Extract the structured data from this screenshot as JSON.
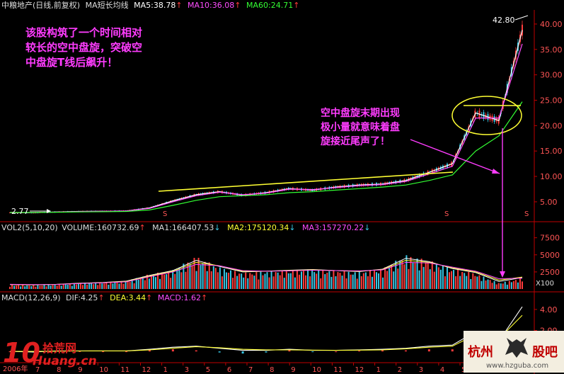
{
  "header_main": {
    "stock_name": "中粮地产(日线,前复权)",
    "ma_label": "MA短长均线",
    "ma5": "MA5:38.78",
    "ma10": "MA10:36.08",
    "ma60": "MA60:24.71"
  },
  "header_vol": {
    "title": "VOL2(5,10,20)",
    "volume": "VOLUME:160732.69",
    "ma1": "MA1:166407.53",
    "ma2": "MA2:175120.34",
    "ma3": "MA3:157270.22"
  },
  "header_macd": {
    "title": "MACD(12,26,9)",
    "dif": "DIF:4.25",
    "dea": "DEA:3.44",
    "macd": "MACD:1.62"
  },
  "annotations": {
    "top_left": [
      "该股构筑了一个时间相对",
      "较长的空中盘旋，突破空",
      "中盘旋T线后飙升！"
    ],
    "middle": [
      "空中盘旋末期出现",
      "极小量就意味着盘",
      "旋接近尾声了！"
    ],
    "price_high": "42.80",
    "price_low": "2.77"
  },
  "x_axis": {
    "year_label": "2006年",
    "month_ticks": [
      "7",
      "8",
      "9",
      "10",
      "11",
      "12",
      "1",
      "3",
      "5",
      "6",
      "7",
      "8",
      "9",
      "10",
      "11",
      "12",
      "1",
      "2",
      "3",
      "4",
      "5"
    ]
  },
  "watermark_left": {
    "big": "10",
    "cn": "拾荒网",
    "en": "Huang.cn"
  },
  "watermark_right": {
    "cn1": "杭州",
    "cn2": "股吧",
    "url": "www.hzguba.com"
  },
  "volume_unit": "X100",
  "colors": {
    "up": "#ff3b3b",
    "down": "#37c7e6",
    "ma5": "#ffffff",
    "ma10": "#ff4dff",
    "ma60": "#33ff33",
    "annotation": "#ff3cff",
    "trendline": "#ffff33",
    "axis": "#c00000"
  },
  "chart_data": [
    {
      "type": "line",
      "title": "中粮地产(日线,前复权)",
      "x": [
        "2006-07",
        "2006-08",
        "2006-09",
        "2006-10",
        "2006-11",
        "2006-12",
        "2007-01",
        "2007-02",
        "2007-03",
        "2007-04",
        "2007-05",
        "2007-06",
        "2007-07",
        "2007-08",
        "2007-09",
        "2007-10",
        "2007-11",
        "2007-12",
        "2008-01",
        "2008-02",
        "2008-03",
        "2008-04",
        "2008-05"
      ],
      "y_ticks": [
        5.0,
        10.0,
        15.0,
        20.0,
        25.0,
        30.0,
        35.0,
        40.0
      ],
      "ylim": [
        1.5,
        42.5
      ],
      "series": [
        {
          "name": "MA5",
          "values": [
            2.9,
            2.85,
            3.0,
            3.1,
            3.15,
            3.2,
            3.8,
            5.2,
            6.4,
            7.0,
            6.3,
            6.8,
            7.6,
            7.3,
            7.9,
            8.3,
            8.5,
            9.2,
            10.8,
            12.5,
            22.5,
            21.0,
            38.8
          ]
        },
        {
          "name": "MA10",
          "values": [
            2.9,
            2.86,
            2.98,
            3.08,
            3.14,
            3.2,
            3.7,
            5.0,
            6.2,
            6.9,
            6.4,
            6.7,
            7.5,
            7.4,
            7.8,
            8.2,
            8.4,
            9.0,
            10.5,
            12.0,
            21.5,
            21.5,
            36.1
          ]
        },
        {
          "name": "MA60",
          "values": [
            2.9,
            2.9,
            2.95,
            3.0,
            3.05,
            3.1,
            3.4,
            4.3,
            5.3,
            6.0,
            6.2,
            6.4,
            6.8,
            7.0,
            7.3,
            7.6,
            7.9,
            8.3,
            9.2,
            10.3,
            15.0,
            18.0,
            24.7
          ]
        }
      ],
      "high": 42.8,
      "low": 2.77
    },
    {
      "type": "bar",
      "title": "VOL2(5,10,20)",
      "x": [
        "2006-07",
        "2006-08",
        "2006-09",
        "2006-10",
        "2006-11",
        "2006-12",
        "2007-01",
        "2007-02",
        "2007-03",
        "2007-04",
        "2007-05",
        "2007-06",
        "2007-07",
        "2007-08",
        "2007-09",
        "2007-10",
        "2007-11",
        "2007-12",
        "2008-01",
        "2008-02",
        "2008-03",
        "2008-04",
        "2008-05"
      ],
      "values": [
        600,
        550,
        700,
        900,
        1000,
        1200,
        2200,
        2800,
        4800,
        3200,
        2400,
        2600,
        2800,
        2900,
        2700,
        2500,
        3000,
        5000,
        4200,
        3000,
        2300,
        900,
        1600
      ],
      "y_ticks": [
        2500,
        5000,
        7500
      ],
      "ylim": [
        0,
        8500
      ],
      "unit": "X100",
      "series": [
        {
          "name": "MA1",
          "values": [
            650,
            600,
            680,
            850,
            950,
            1150,
            2000,
            2700,
            4200,
            3300,
            2500,
            2600,
            2750,
            2850,
            2700,
            2550,
            2900,
            4500,
            4000,
            3000,
            2400,
            1100,
            1664
          ]
        },
        {
          "name": "MA2",
          "values": [
            660,
            620,
            670,
            820,
            930,
            1100,
            1900,
            2600,
            3900,
            3400,
            2600,
            2600,
            2700,
            2800,
            2700,
            2600,
            2850,
            4200,
            3900,
            3100,
            2500,
            1300,
            1751
          ]
        },
        {
          "name": "MA3",
          "values": [
            680,
            640,
            660,
            800,
            900,
            1050,
            1800,
            2500,
            3600,
            3400,
            2700,
            2600,
            2650,
            2750,
            2700,
            2650,
            2800,
            3900,
            3800,
            3200,
            2600,
            1500,
            1573
          ]
        }
      ]
    },
    {
      "type": "line",
      "title": "MACD(12,26,9)",
      "x": [
        "2006-07",
        "2006-08",
        "2006-09",
        "2006-10",
        "2006-11",
        "2006-12",
        "2007-01",
        "2007-02",
        "2007-03",
        "2007-04",
        "2007-05",
        "2007-06",
        "2007-07",
        "2007-08",
        "2007-09",
        "2007-10",
        "2007-11",
        "2007-12",
        "2008-01",
        "2008-02",
        "2008-03",
        "2008-04",
        "2008-05"
      ],
      "y_ticks": [
        2.0,
        4.0
      ],
      "ylim": [
        -0.6,
        4.8
      ],
      "series": [
        {
          "name": "DIF",
          "values": [
            0.0,
            -0.05,
            0.05,
            0.05,
            0.05,
            0.05,
            0.2,
            0.4,
            0.5,
            0.3,
            0.1,
            0.1,
            0.2,
            0.1,
            0.1,
            0.15,
            0.2,
            0.3,
            0.5,
            0.6,
            1.9,
            1.0,
            4.25
          ]
        },
        {
          "name": "DEA",
          "values": [
            0.0,
            0.0,
            0.02,
            0.04,
            0.05,
            0.05,
            0.15,
            0.3,
            0.45,
            0.35,
            0.2,
            0.15,
            0.15,
            0.12,
            0.1,
            0.12,
            0.15,
            0.25,
            0.4,
            0.5,
            1.6,
            1.2,
            3.44
          ]
        }
      ],
      "bars": [
        0.0,
        -0.1,
        0.06,
        0.02,
        0.0,
        0.0,
        0.1,
        0.2,
        0.1,
        -0.1,
        -0.2,
        -0.1,
        0.1,
        -0.04,
        0.0,
        0.06,
        0.1,
        0.1,
        0.2,
        0.2,
        0.6,
        -0.4,
        1.62
      ]
    }
  ]
}
